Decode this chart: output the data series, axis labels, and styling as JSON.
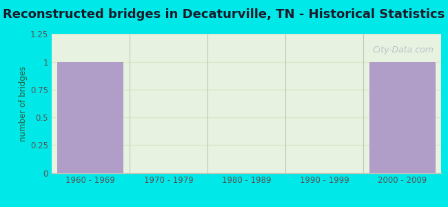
{
  "title": "Reconstructed bridges in Decaturville, TN - Historical Statistics",
  "categories": [
    "1960 - 1969",
    "1970 - 1979",
    "1980 - 1989",
    "1990 - 1999",
    "2000 - 2009"
  ],
  "values": [
    1,
    0,
    0,
    0,
    1
  ],
  "bar_color": "#b09ec8",
  "ylabel": "number of bridges",
  "ylim": [
    0,
    1.25
  ],
  "yticks": [
    0,
    0.25,
    0.5,
    0.75,
    1.0,
    1.25
  ],
  "ytick_labels": [
    "0",
    "0.25",
    "0.5",
    "0.75",
    "1",
    "1.25"
  ],
  "background_outer": "#00e8e8",
  "background_inner_top": "#e8f2e0",
  "background_inner_bottom": "#f5faf0",
  "title_fontsize": 13,
  "title_color": "#1a1a2a",
  "axis_label_color": "#2a6040",
  "tick_label_color": "#555555",
  "watermark": "City-Data.com",
  "grid_color": "#d8e8c8",
  "separator_color": "#c0c8b8"
}
